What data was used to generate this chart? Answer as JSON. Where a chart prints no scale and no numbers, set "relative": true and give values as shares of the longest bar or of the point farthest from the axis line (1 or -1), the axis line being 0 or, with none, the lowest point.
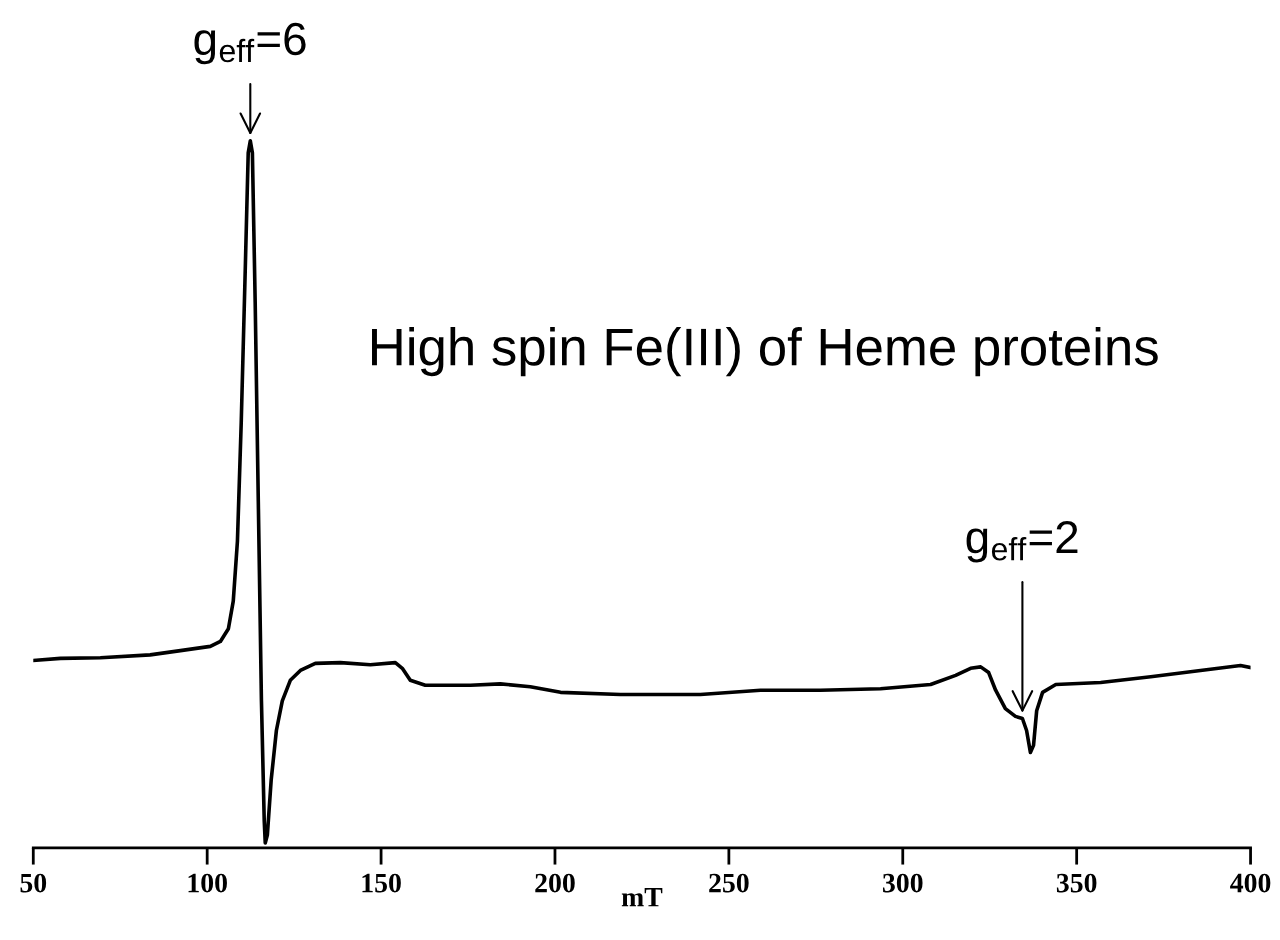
{
  "chart_data": {
    "type": "line",
    "relative": true,
    "xlabel": "mT",
    "xlim": [
      50,
      400
    ],
    "xticks": [
      50,
      100,
      150,
      200,
      250,
      300,
      350,
      400
    ],
    "grid": false,
    "legend": false,
    "marker": "none",
    "line_style": "solid",
    "annotations": [
      {
        "text": "g$_{eff}$=6",
        "x": 112.4,
        "y": 1.0
      },
      {
        "text": "g$_{eff}$=2",
        "x": 334.4,
        "y": 0.183
      },
      "High spin Fe(III) of Heme proteins"
    ],
    "series": [
      {
        "color": "#000000",
        "x": [
          50,
          57.8,
          69.3,
          83.6,
          92.3,
          100.9,
          103.8,
          106.1,
          107.5,
          108.7,
          109.8,
          111.0,
          111.8,
          112.4,
          113.0,
          113.8,
          114.7,
          115.6,
          116.4,
          116.7,
          117.3,
          118.4,
          119.9,
          121.6,
          123.9,
          126.8,
          131.1,
          138.3,
          146.9,
          154.1,
          156.1,
          158.4,
          162.7,
          175.7,
          184.3,
          192.9,
          201.6,
          218.8,
          241.8,
          259.1,
          276.3,
          293.6,
          308.0,
          315.2,
          319.5,
          322.4,
          324.7,
          326.7,
          329.5,
          332.4,
          334.4,
          335.6,
          336.7,
          337.6,
          338.5,
          340.2,
          344.0,
          356.9,
          371.3,
          385.6,
          397.1,
          400.0
        ],
        "values": [
          0.265,
          0.268,
          0.269,
          0.273,
          0.279,
          0.285,
          0.292,
          0.31,
          0.349,
          0.434,
          0.603,
          0.828,
          0.983,
          1.0,
          0.983,
          0.772,
          0.49,
          0.208,
          0.039,
          0.007,
          0.018,
          0.096,
          0.166,
          0.208,
          0.237,
          0.251,
          0.261,
          0.262,
          0.259,
          0.262,
          0.254,
          0.237,
          0.23,
          0.23,
          0.232,
          0.228,
          0.22,
          0.217,
          0.217,
          0.223,
          0.223,
          0.225,
          0.231,
          0.244,
          0.254,
          0.256,
          0.248,
          0.223,
          0.197,
          0.186,
          0.183,
          0.166,
          0.135,
          0.145,
          0.194,
          0.22,
          0.231,
          0.234,
          0.242,
          0.251,
          0.258,
          0.255
        ]
      }
    ]
  }
}
